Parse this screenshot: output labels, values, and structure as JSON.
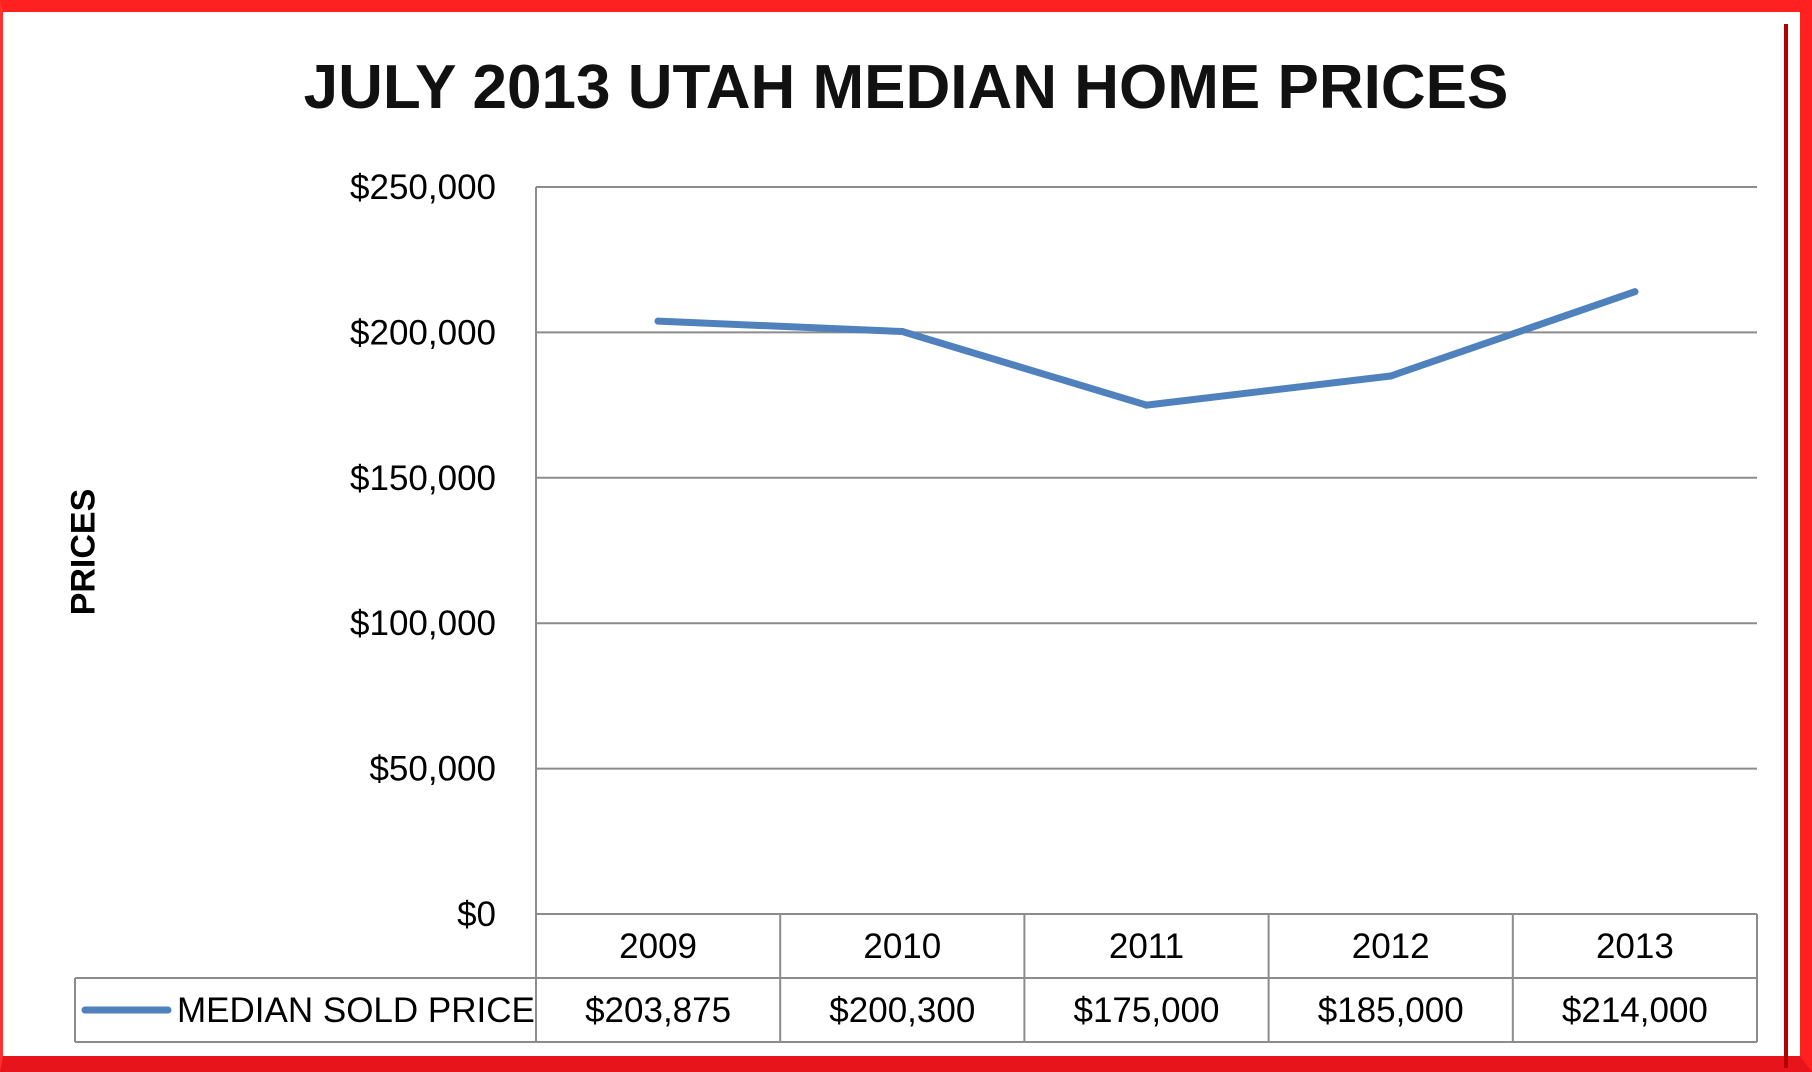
{
  "chart_data": {
    "type": "line",
    "title": "JULY 2013 UTAH MEDIAN HOME PRICES",
    "ylabel": "PRICES",
    "xlabel": "",
    "categories": [
      "2009",
      "2010",
      "2011",
      "2012",
      "2013"
    ],
    "series": [
      {
        "name": "MEDIAN SOLD PRICE",
        "values": [
          203875,
          200300,
          175000,
          185000,
          214000
        ],
        "value_labels": [
          "$203,875",
          "$200,300",
          "$175,000",
          "$185,000",
          "$214,000"
        ],
        "color": "#4f81bd"
      }
    ],
    "ylim": [
      0,
      250000
    ],
    "yticks": [
      0,
      50000,
      100000,
      150000,
      200000,
      250000
    ],
    "ytick_labels": [
      "$0",
      "$50,000",
      "$100,000",
      "$150,000",
      "$200,000",
      "$250,000"
    ],
    "grid": true,
    "legend": "data-table-below"
  },
  "colors": {
    "frame": "#ff2020",
    "grid": "#8c8c8c",
    "line": "#4f81bd"
  }
}
